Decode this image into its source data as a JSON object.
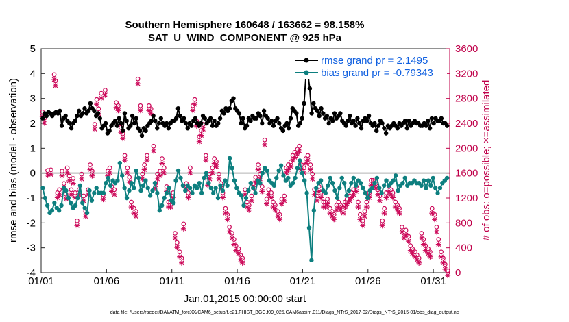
{
  "chart_data": {
    "type": "line",
    "title_line1": "Southern Hemisphere 160648 / 163662 = 98.158%",
    "title_line2": "SAT_U_WIND_COMPONENT @ 925 hPa",
    "xlabel": "Jan.01,2015 00:00:00 start",
    "ylabel_left": "rmse and bias (model - observation)",
    "ylabel_right": "# of obs: o=possible; ×=assimilated",
    "footnote": "data file: /Users/raeder/DAI/ATM_forcXX/CAM6_setup/f.e21.FHIST_BGC.f09_025.CAM6assim.011/Diags_NTrS_2017-02/Diags_NTrS_2015-01/obs_diag_output.nc",
    "xlim": [
      1,
      32.25
    ],
    "ylim_left": [
      -4,
      5
    ],
    "ylim_right": [
      0,
      3600
    ],
    "x_ticks": [
      1,
      6,
      11,
      16,
      21,
      26,
      31
    ],
    "x_tick_labels": [
      "01/01",
      "01/06",
      "01/11",
      "01/16",
      "01/21",
      "01/26",
      "01/31"
    ],
    "y_ticks_left": [
      -4,
      -3,
      -2,
      -1,
      0,
      1,
      2,
      3,
      4,
      5
    ],
    "y_ticks_right": [
      0,
      400,
      800,
      1200,
      1600,
      2000,
      2400,
      2800,
      3200,
      3600
    ],
    "legend_location": "top-right",
    "colors": {
      "rmse": "#000000",
      "bias": "#0d7f7f",
      "obs": "#cc0a5a",
      "zero_line": "#b3b3b3",
      "legend_text": "#1060e0",
      "right_axis": "#c0004a"
    },
    "series": [
      {
        "name": "rmse grand pr = 2.1495",
        "key": "rmse",
        "values": [
          2.2,
          2.4,
          2.3,
          2.45,
          2.4,
          2.3,
          2.4,
          2.45,
          2.4,
          2.5,
          1.9,
          2.2,
          2.3,
          2.1,
          2.0,
          1.8,
          2.0,
          2.1,
          2.3,
          2.5,
          2.3,
          2.4,
          2.6,
          2.4,
          2.5,
          2.8,
          2.6,
          2.5,
          2.3,
          2.4,
          2.2,
          1.8,
          1.9,
          2.0,
          1.6,
          1.7,
          1.9,
          2.0,
          2.1,
          1.9,
          2.2,
          2.0,
          1.7,
          2.4,
          2.1,
          1.8,
          1.9,
          2.3,
          2.0,
          2.2,
          1.8,
          1.7,
          1.5,
          1.8,
          1.7,
          1.9,
          2.0,
          2.1,
          2.3,
          2.1,
          1.8,
          2.0,
          2.2,
          2.0,
          1.9,
          2.0,
          1.8,
          2.0,
          2.1,
          2.1,
          2.2,
          2.6,
          2.3,
          2.1,
          2.2,
          2.0,
          1.8,
          2.0,
          1.9,
          2.1,
          2.2,
          2.0,
          1.9,
          2.0,
          2.3,
          2.2,
          2.0,
          2.1,
          2.2,
          1.9,
          2.1,
          1.9,
          2.0,
          2.2,
          2.5,
          2.4,
          2.6,
          2.5,
          2.6,
          2.9,
          3.0,
          2.6,
          2.5,
          2.4,
          2.0,
          2.2,
          1.8,
          1.9,
          2.2,
          2.1,
          2.3,
          2.2,
          2.2,
          2.4,
          2.3,
          2.0,
          2.5,
          2.3,
          2.2,
          2.0,
          2.1,
          1.9,
          2.1,
          2.2,
          2.0,
          1.8,
          1.7,
          1.9,
          2.0,
          1.8,
          2.2,
          2.6,
          2.5,
          2.4,
          1.9,
          2.0,
          2.2,
          2.8,
          3.9,
          4.0,
          3.4,
          2.4,
          2.8,
          2.6,
          2.5,
          2.3,
          2.6,
          2.4,
          2.2,
          2.3,
          2.0,
          2.2,
          2.1,
          2.4,
          2.2,
          2.3,
          2.4,
          2.1,
          2.0,
          1.9,
          2.1,
          2.3,
          2.0,
          2.1,
          1.9,
          2.2,
          2.0,
          1.8,
          2.1,
          2.2,
          2.1,
          2.3,
          2.0,
          1.9,
          2.0,
          1.7,
          1.9,
          2.1,
          2.0,
          1.8,
          1.6,
          1.9,
          1.8,
          1.9,
          2.0,
          1.9,
          1.8,
          2.0,
          1.9,
          2.0,
          2.1,
          1.8,
          2.1,
          1.9,
          2.0,
          2.1,
          2.0,
          2.0,
          1.9,
          1.9,
          2.0,
          1.9,
          2.1,
          1.8,
          2.2,
          2.0,
          2.2,
          2.1,
          2.1,
          2.2,
          2.0,
          2.0,
          1.9
        ]
      },
      {
        "name": "bias grand pr = -0.79343",
        "key": "bias",
        "values": [
          -0.6,
          -1.0,
          -1.3,
          -1.6,
          -1.5,
          -1.2,
          -1.4,
          -1.5,
          -1.3,
          -0.6,
          -0.7,
          -1.0,
          -1.2,
          -1.4,
          -1.3,
          -1.0,
          -0.5,
          -1.2,
          -1.4,
          -1.6,
          -0.7,
          -1.1,
          -0.8,
          -0.6,
          -0.8,
          -0.8,
          -0.8,
          -0.4,
          -0.2,
          -0.5,
          -0.3,
          -0.4,
          -0.3,
          0.4,
          -0.1,
          -0.6,
          -1.0,
          -0.7,
          -0.4,
          -0.6,
          0.1,
          -0.2,
          -0.7,
          -0.5,
          -0.3,
          -0.6,
          -0.9,
          -0.7,
          -0.4,
          -0.8,
          -1.5,
          -1.3,
          -1.0,
          -0.8,
          -0.6,
          -1.1,
          -1.2,
          -0.3,
          0.1,
          -0.2,
          -0.5,
          -0.7,
          -0.5,
          -0.6,
          -0.8,
          -0.5,
          -0.6,
          -0.4,
          -0.8,
          -0.2,
          0.0,
          -0.4,
          -0.6,
          -0.8,
          -0.6,
          -1.0,
          -0.5,
          -0.7,
          -0.3,
          -0.5,
          0.6,
          0.2,
          -0.3,
          -0.6,
          -0.8,
          -0.9,
          -1.3,
          -1.0,
          -0.7,
          -0.4,
          -0.6,
          -0.8,
          -0.3,
          -0.4,
          0.0,
          0.2,
          0.1,
          -0.3,
          -0.4,
          -0.5,
          -0.2,
          0.1,
          0.3,
          -0.1,
          -0.3,
          -0.2,
          -0.5,
          -0.4,
          -0.2,
          0.2,
          0.5,
          0.0,
          -0.3,
          -0.8,
          -2.2,
          -3.5,
          -1.5,
          -0.6,
          -0.4,
          -0.3,
          -0.7,
          -0.8,
          -0.5,
          -0.2,
          -0.4,
          -0.7,
          -1.0,
          -0.6,
          -0.2,
          -0.4,
          -0.9,
          -0.7,
          -0.4,
          -0.2,
          -0.5,
          -0.3,
          -0.4,
          -0.6,
          -0.8,
          -1.0,
          -0.7,
          -0.6,
          -0.4,
          -0.2,
          -0.6,
          -0.8,
          -0.5,
          -0.3,
          -0.5,
          -0.4,
          -0.3,
          -0.1,
          -0.7,
          -0.5,
          -0.4,
          -0.2,
          -0.5,
          -0.4,
          -0.4,
          -0.3,
          -0.4,
          -0.4,
          -0.5,
          -0.3,
          -0.6,
          -0.3,
          -0.5,
          -0.2,
          -0.6,
          -0.8,
          -0.6,
          -0.4,
          -0.3,
          -0.2
        ]
      },
      {
        "name": "obs possible (o) / assimilated (×)",
        "key": "obs",
        "values": [
          2550,
          2450,
          1610,
          1620,
          1380,
          1580,
          3150,
          3050,
          1250,
          1300,
          1320,
          1600,
          1620,
          1400,
          1230,
          1650,
          1520,
          1300,
          1480,
          1500,
          1250,
          800,
          1300,
          1250,
          1550,
          1500,
          1200,
          950,
          800,
          1300,
          1700,
          1700,
          1600,
          2350,
          2750,
          2600,
          2650,
          2850,
          2800,
          3550,
          3700,
          3100,
          3650,
          3350,
          3600,
          3400,
          3100,
          2700,
          2450,
          1600,
          1650,
          1550,
          1350,
          1300,
          1600,
          2700,
          2650,
          2300,
          2200,
          2200,
          1850,
          1650,
          1500,
          1100,
          1000,
          950,
          800,
          1150,
          1500,
          1700,
          1850,
          2650,
          2600,
          2000,
          1400,
          1550,
          1600,
          1800,
          1650,
          1600,
          1350,
          1100,
          1100,
          1250,
          1200,
          1200,
          650,
          450,
          300,
          200,
          600,
          750,
          1400,
          1250,
          1650,
          2650,
          2750,
          2400,
          2150,
          2250,
          2350,
          1850,
          1450,
          1550,
          1650,
          1800,
          1750,
          1550,
          1550,
          1400,
          1250,
          1000,
          900,
          700,
          600,
          500,
          400,
          350,
          250,
          200,
          1300,
          1100,
          1050,
          1200,
          1100,
          1400,
          1500,
          1700,
          1550,
          1350,
          1300,
          1150,
          1150,
          1300,
          1250,
          1100,
          1050,
          950,
          900,
          1150,
          1200,
          1200,
          1650,
          1700,
          1750,
          1850,
          1900,
          1950,
          2000,
          1700,
          1650,
          1800,
          1850,
          1700,
          1550,
          1300,
          1200,
          1350,
          1250,
          1100,
          1100,
          1150,
          1000,
          950,
          900,
          1050,
          1100,
          1050,
          1000,
          1100,
          1150,
          1200,
          1250,
          1300,
          1350,
          1100,
          900,
          800,
          950,
          1100,
          1250,
          1450,
          1450,
          1400,
          1300,
          1200,
          800,
          1000,
          1250,
          1350,
          1300,
          1250,
          1100,
          1050,
          1000,
          700,
          600,
          650,
          550,
          400,
          350,
          300,
          250,
          200,
          600,
          500,
          400,
          350,
          300,
          1000,
          900,
          700,
          500,
          300,
          200,
          100,
          600,
          500,
          400
        ]
      }
    ],
    "obs_points": [
      [
        1.1,
        2550
      ],
      [
        1.25,
        2450
      ],
      [
        1.5,
        1610
      ],
      [
        1.75,
        1620
      ],
      [
        2.0,
        3150
      ],
      [
        2.1,
        3050
      ],
      [
        2.25,
        1250
      ],
      [
        2.4,
        1300
      ],
      [
        2.6,
        1600
      ],
      [
        2.75,
        1400
      ],
      [
        2.9,
        1230
      ],
      [
        3.0,
        1650
      ],
      [
        3.15,
        1520
      ],
      [
        3.3,
        1300
      ],
      [
        3.45,
        1480
      ],
      [
        3.6,
        1250
      ],
      [
        3.75,
        800
      ],
      [
        3.9,
        1300
      ],
      [
        4.1,
        1550
      ],
      [
        4.25,
        1200
      ],
      [
        4.4,
        950
      ],
      [
        4.6,
        1300
      ],
      [
        4.75,
        1700
      ],
      [
        4.9,
        1600
      ],
      [
        5.1,
        2350
      ],
      [
        5.25,
        2750
      ],
      [
        5.4,
        2600
      ],
      [
        5.6,
        2850
      ],
      [
        5.75,
        1220
      ],
      [
        5.9,
        2900
      ],
      [
        6.1,
        1600
      ],
      [
        6.25,
        1650
      ],
      [
        6.4,
        1350
      ],
      [
        6.6,
        1300
      ],
      [
        6.75,
        2700
      ],
      [
        6.9,
        2650
      ],
      [
        7.1,
        2300
      ],
      [
        7.25,
        2200
      ],
      [
        7.4,
        1850
      ],
      [
        7.6,
        1650
      ],
      [
        7.75,
        1500
      ],
      [
        7.9,
        1100
      ],
      [
        8.1,
        1000
      ],
      [
        8.25,
        950
      ],
      [
        8.4,
        3080
      ],
      [
        8.6,
        2650
      ],
      [
        8.75,
        1550
      ],
      [
        8.9,
        1700
      ],
      [
        9.1,
        1850
      ],
      [
        9.25,
        2650
      ],
      [
        9.4,
        2600
      ],
      [
        9.6,
        2000
      ],
      [
        9.75,
        1400
      ],
      [
        9.9,
        1550
      ],
      [
        10.1,
        1600
      ],
      [
        10.25,
        1800
      ],
      [
        10.4,
        1650
      ],
      [
        10.6,
        1350
      ],
      [
        10.75,
        1100
      ],
      [
        10.9,
        1100
      ],
      [
        11.1,
        1250
      ],
      [
        11.25,
        600
      ],
      [
        11.4,
        450
      ],
      [
        11.6,
        300
      ],
      [
        11.75,
        200
      ],
      [
        11.9,
        750
      ],
      [
        12.1,
        1400
      ],
      [
        12.25,
        1250
      ],
      [
        12.4,
        1650
      ],
      [
        12.6,
        2650
      ],
      [
        12.75,
        2750
      ],
      [
        12.9,
        2400
      ],
      [
        13.1,
        2150
      ],
      [
        13.25,
        2250
      ],
      [
        13.4,
        2350
      ],
      [
        13.6,
        1850
      ],
      [
        13.75,
        1450
      ],
      [
        13.9,
        1550
      ],
      [
        14.1,
        1650
      ],
      [
        14.25,
        1800
      ],
      [
        14.4,
        1750
      ],
      [
        14.6,
        1550
      ],
      [
        14.75,
        1400
      ],
      [
        14.9,
        1250
      ],
      [
        15.1,
        1000
      ],
      [
        15.25,
        900
      ],
      [
        15.4,
        700
      ],
      [
        15.6,
        600
      ],
      [
        15.75,
        500
      ],
      [
        15.9,
        400
      ],
      [
        16.1,
        350
      ],
      [
        16.25,
        250
      ],
      [
        16.4,
        200
      ],
      [
        16.6,
        1300
      ],
      [
        16.75,
        1100
      ],
      [
        16.9,
        1050
      ],
      [
        17.1,
        1200
      ],
      [
        17.25,
        1400
      ],
      [
        17.4,
        1500
      ],
      [
        17.6,
        1700
      ],
      [
        17.75,
        1550
      ],
      [
        17.9,
        1350
      ],
      [
        18.1,
        2100
      ],
      [
        18.25,
        1150
      ],
      [
        18.4,
        1300
      ],
      [
        18.6,
        1250
      ],
      [
        18.75,
        1100
      ],
      [
        18.9,
        1050
      ],
      [
        19.1,
        950
      ],
      [
        19.25,
        900
      ],
      [
        19.4,
        1150
      ],
      [
        19.6,
        1200
      ],
      [
        19.75,
        1650
      ],
      [
        19.9,
        1700
      ],
      [
        20.1,
        1750
      ],
      [
        20.25,
        1850
      ],
      [
        20.4,
        1900
      ],
      [
        20.6,
        1950
      ],
      [
        20.75,
        2000
      ],
      [
        20.9,
        1700
      ],
      [
        21.1,
        1650
      ],
      [
        21.25,
        1800
      ],
      [
        21.4,
        1850
      ],
      [
        21.6,
        1700
      ],
      [
        21.75,
        1550
      ],
      [
        21.9,
        1300
      ],
      [
        22.1,
        1200
      ],
      [
        22.25,
        1350
      ],
      [
        22.4,
        1250
      ],
      [
        22.6,
        1100
      ],
      [
        22.75,
        1100
      ],
      [
        22.9,
        1150
      ],
      [
        23.1,
        1000
      ],
      [
        23.25,
        950
      ],
      [
        23.4,
        900
      ],
      [
        23.6,
        1050
      ],
      [
        23.75,
        1100
      ],
      [
        23.9,
        1050
      ],
      [
        24.1,
        1000
      ],
      [
        24.25,
        1100
      ],
      [
        24.4,
        1150
      ],
      [
        24.6,
        1200
      ],
      [
        24.75,
        1250
      ],
      [
        24.9,
        1300
      ],
      [
        25.1,
        1350
      ],
      [
        25.25,
        1100
      ],
      [
        25.4,
        900
      ],
      [
        25.6,
        800
      ],
      [
        25.75,
        950
      ],
      [
        25.9,
        1100
      ],
      [
        26.1,
        1250
      ],
      [
        26.25,
        1450
      ],
      [
        26.4,
        1450
      ],
      [
        26.6,
        1400
      ],
      [
        26.75,
        1300
      ],
      [
        26.9,
        1200
      ],
      [
        27.1,
        800
      ],
      [
        27.25,
        1000
      ],
      [
        27.4,
        1250
      ],
      [
        27.6,
        1350
      ],
      [
        27.75,
        1300
      ],
      [
        27.9,
        1250
      ],
      [
        28.1,
        1100
      ],
      [
        28.25,
        1050
      ],
      [
        28.4,
        1000
      ],
      [
        28.6,
        700
      ],
      [
        28.75,
        600
      ],
      [
        28.9,
        650
      ],
      [
        29.1,
        550
      ],
      [
        29.25,
        400
      ],
      [
        29.4,
        350
      ],
      [
        29.6,
        300
      ],
      [
        29.75,
        250
      ],
      [
        29.9,
        200
      ],
      [
        30.1,
        600
      ],
      [
        30.25,
        500
      ],
      [
        30.4,
        400
      ],
      [
        30.6,
        350
      ],
      [
        30.75,
        300
      ],
      [
        30.9,
        1000
      ],
      [
        31.1,
        900
      ],
      [
        31.25,
        700
      ],
      [
        31.4,
        500
      ],
      [
        31.6,
        300
      ],
      [
        31.75,
        200
      ],
      [
        31.9,
        100
      ],
      [
        32.1,
        0
      ]
    ]
  },
  "legend": {
    "rmse_label": "rmse grand pr = 2.1495",
    "bias_label": "bias grand pr = -0.79343"
  }
}
